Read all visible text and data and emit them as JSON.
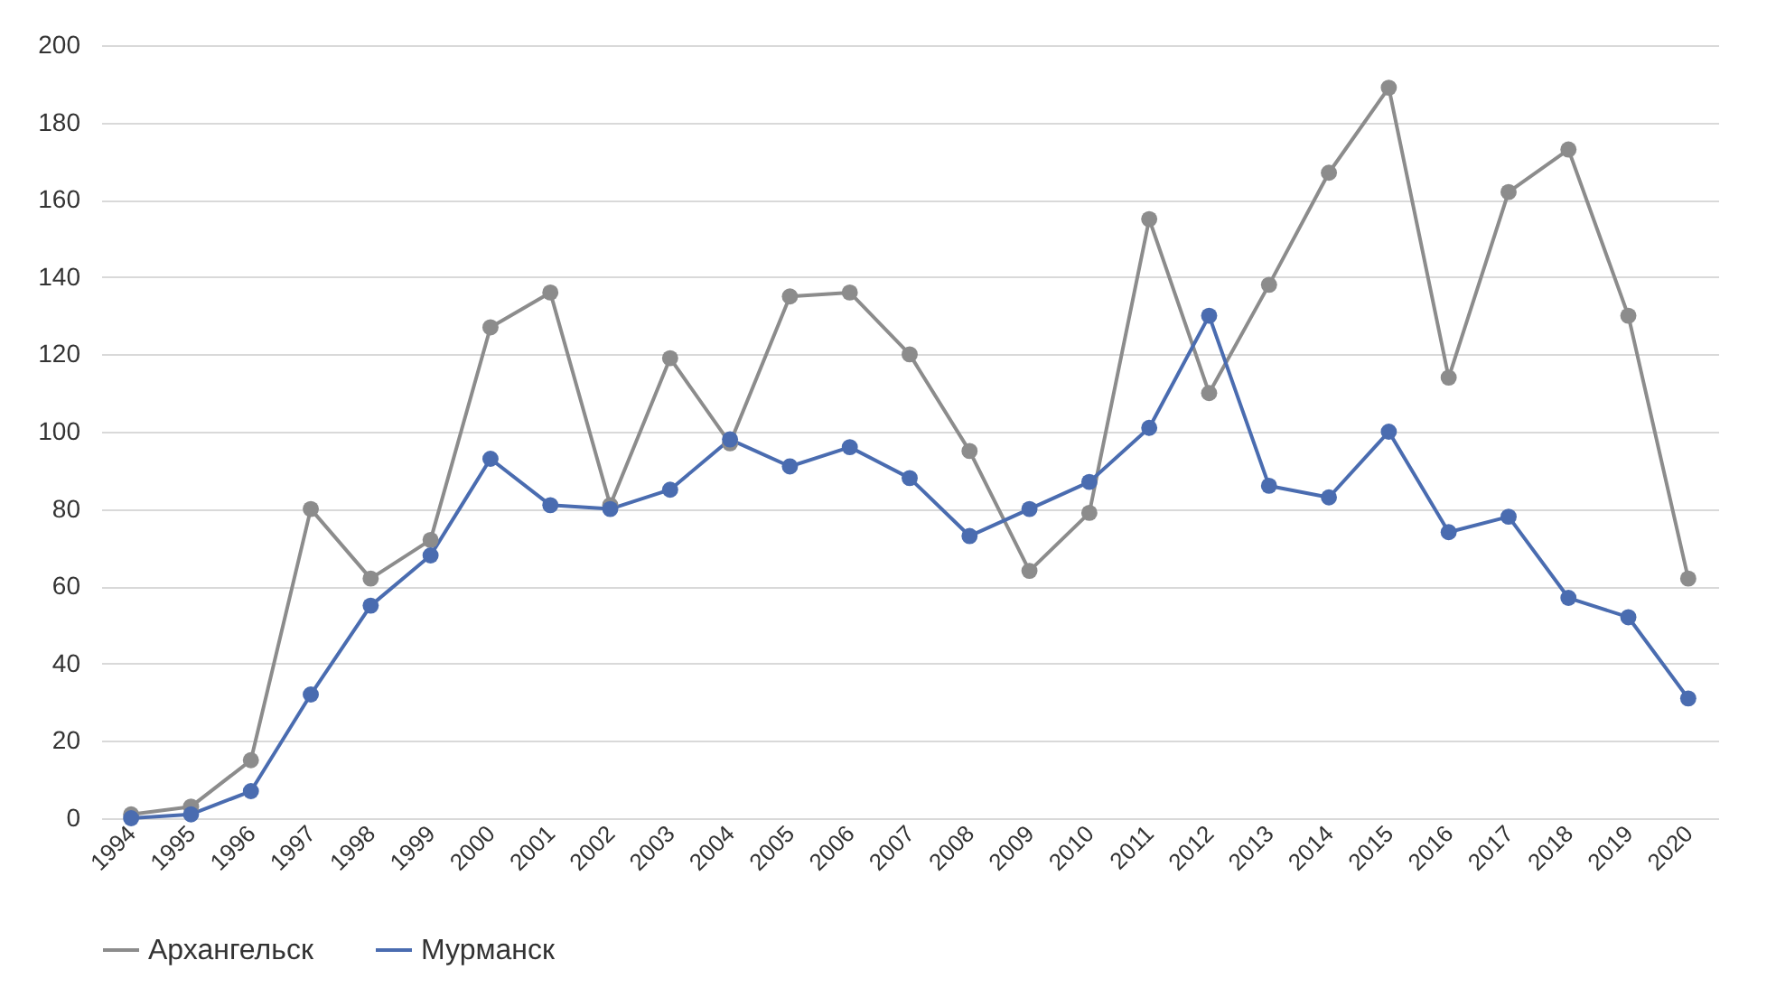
{
  "chart_data": {
    "type": "line",
    "categories": [
      "1994",
      "1995",
      "1996",
      "1997",
      "1998",
      "1999",
      "2000",
      "2001",
      "2002",
      "2003",
      "2004",
      "2005",
      "2006",
      "2007",
      "2008",
      "2009",
      "2010",
      "2011",
      "2012",
      "2013",
      "2014",
      "2015",
      "2016",
      "2017",
      "2018",
      "2019",
      "2020"
    ],
    "series": [
      {
        "name": "Архангельск",
        "color": "#8c8c8c",
        "values": [
          1,
          3,
          15,
          80,
          62,
          72,
          127,
          136,
          81,
          119,
          97,
          135,
          136,
          120,
          95,
          64,
          79,
          155,
          110,
          138,
          167,
          189,
          114,
          162,
          173,
          130,
          62
        ]
      },
      {
        "name": "Мурманск",
        "color": "#4a6cb0",
        "values": [
          0,
          1,
          7,
          32,
          55,
          68,
          93,
          81,
          80,
          85,
          98,
          91,
          96,
          88,
          73,
          80,
          87,
          101,
          130,
          86,
          83,
          100,
          74,
          78,
          57,
          52,
          31
        ]
      }
    ],
    "ylim": [
      0,
      200
    ],
    "yticks": [
      0,
      20,
      40,
      60,
      80,
      100,
      120,
      140,
      160,
      180,
      200
    ],
    "grid": "y",
    "legend": "bottom",
    "marker": "circle",
    "line_style": "solid"
  }
}
